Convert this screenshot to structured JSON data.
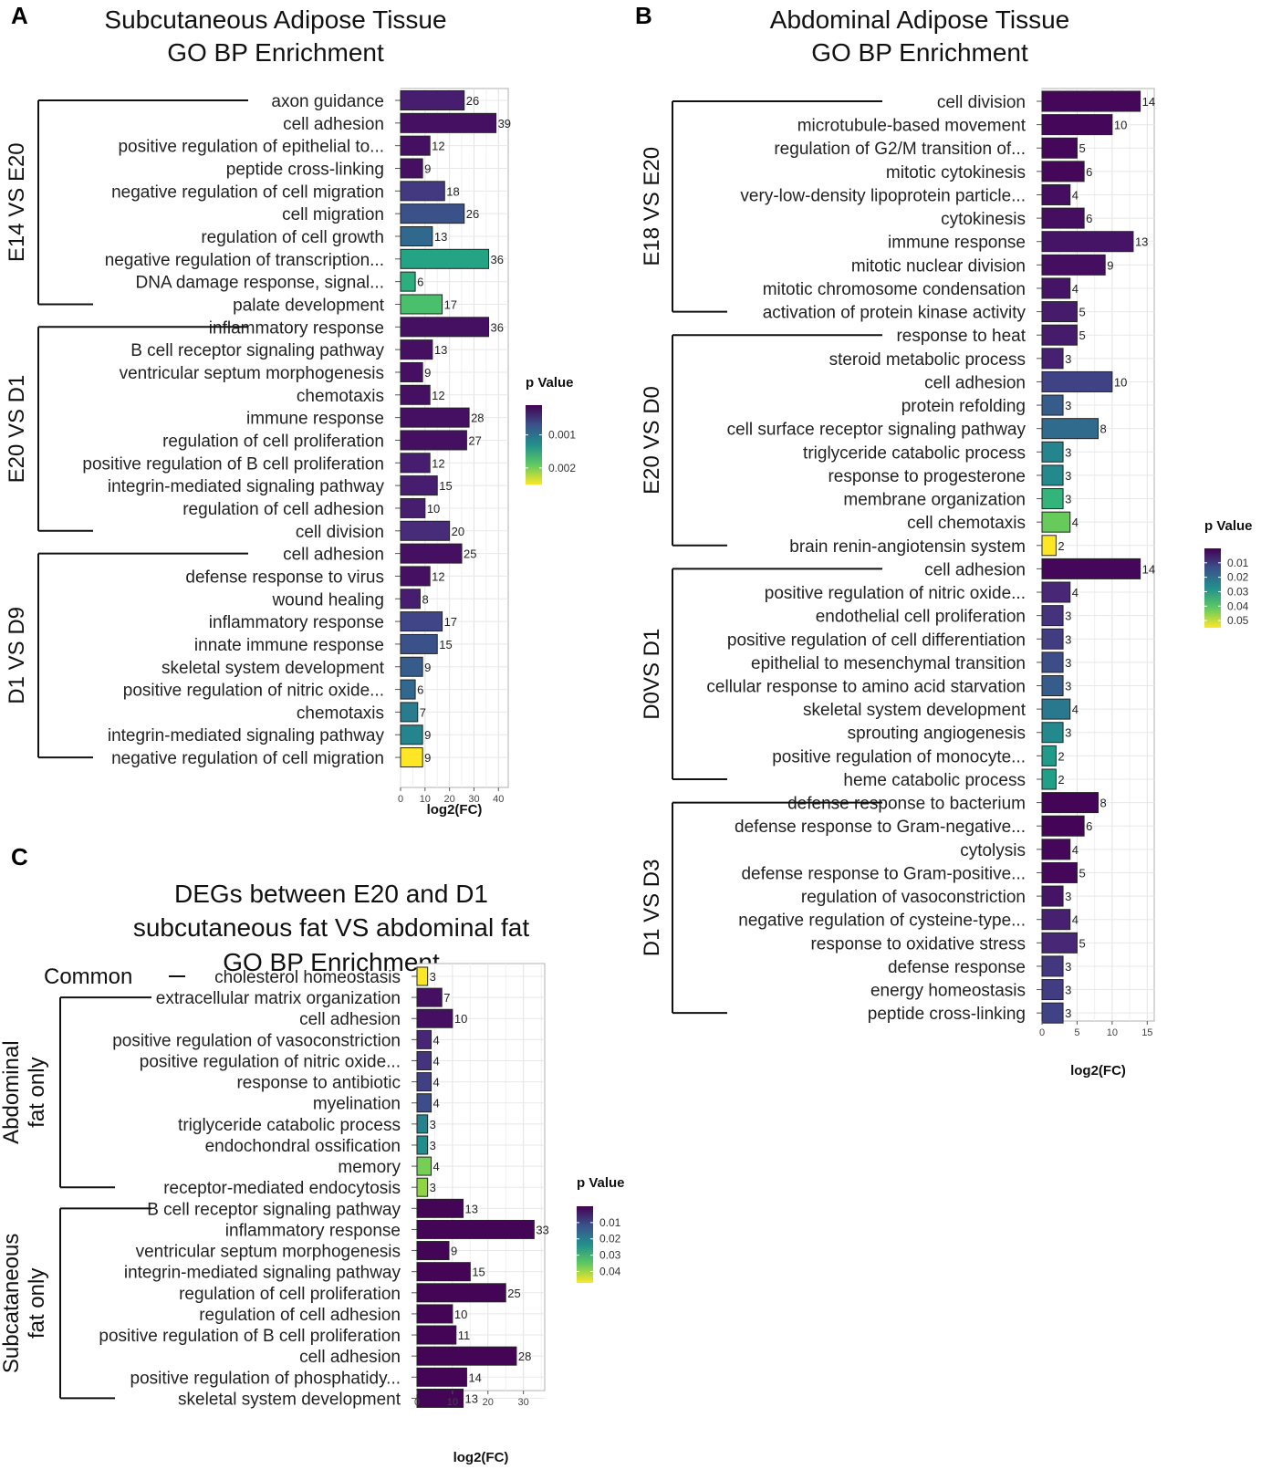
{
  "figure": {
    "panels": [
      {
        "letter": "A",
        "title": [
          "Subcutaneous Adipose Tissue",
          "GO BP Enrichment"
        ],
        "xlabel": "log2(FC)",
        "legend_title": "p Value"
      },
      {
        "letter": "B",
        "title": [
          "Abdominal Adipose Tissue",
          "GO BP Enrichment"
        ],
        "xlabel": "log2(FC)",
        "legend_title": "p Value"
      },
      {
        "letter": "C",
        "title": [
          "DEGs between E20 and D1",
          "subcutaneous fat VS abdominal fat",
          "GO BP Enrichment"
        ],
        "xlabel": "log2(FC)",
        "legend_title": "p Value"
      }
    ]
  },
  "chart_data": [
    {
      "type": "bar",
      "orientation": "horizontal",
      "panel": "A",
      "title": "Subcutaneous Adipose Tissue GO BP Enrichment",
      "xlabel": "log2(FC)",
      "xlim": [
        0,
        44
      ],
      "xticks": [
        0,
        10,
        20,
        30,
        40
      ],
      "legend": {
        "title": "p Value",
        "ticks": [
          0.001,
          0.002
        ],
        "range": [
          0.0001,
          0.0025
        ],
        "position": "right"
      },
      "groups": [
        {
          "name": "E14 VS E20",
          "terms": [
            {
              "label": "axon guidance",
              "value": 26,
              "p": 0.0003
            },
            {
              "label": "cell adhesion",
              "value": 39,
              "p": 0.0002
            },
            {
              "label": "positive regulation of epithelial to...",
              "value": 12,
              "p": 0.0002
            },
            {
              "label": "peptide cross-linking",
              "value": 9,
              "p": 0.0002
            },
            {
              "label": "negative regulation of cell migration",
              "value": 18,
              "p": 0.0005
            },
            {
              "label": "cell migration",
              "value": 26,
              "p": 0.0007
            },
            {
              "label": "regulation of cell growth",
              "value": 13,
              "p": 0.0009
            },
            {
              "label": "negative regulation of transcription...",
              "value": 36,
              "p": 0.0015
            },
            {
              "label": "DNA damage response, signal...",
              "value": 6,
              "p": 0.0016
            },
            {
              "label": "palate development",
              "value": 17,
              "p": 0.0018
            }
          ]
        },
        {
          "name": "E20 VS D1",
          "terms": [
            {
              "label": "inflammatory response",
              "value": 36,
              "p": 0.0002
            },
            {
              "label": "B cell receptor signaling pathway",
              "value": 13,
              "p": 0.0002
            },
            {
              "label": "ventricular septum morphogenesis",
              "value": 9,
              "p": 0.0002
            },
            {
              "label": "chemotaxis",
              "value": 12,
              "p": 0.0002
            },
            {
              "label": "immune response",
              "value": 28,
              "p": 0.0002
            },
            {
              "label": "regulation of cell proliferation",
              "value": 27,
              "p": 0.0002
            },
            {
              "label": "positive regulation of B cell proliferation",
              "value": 12,
              "p": 0.0003
            },
            {
              "label": "integrin-mediated signaling pathway",
              "value": 15,
              "p": 0.0003
            },
            {
              "label": "regulation of cell adhesion",
              "value": 10,
              "p": 0.0003
            },
            {
              "label": "cell division",
              "value": 20,
              "p": 0.0004
            }
          ]
        },
        {
          "name": "D1 VS D9",
          "terms": [
            {
              "label": "cell adhesion",
              "value": 25,
              "p": 0.0002
            },
            {
              "label": "defense response to virus",
              "value": 12,
              "p": 0.0002
            },
            {
              "label": "wound healing",
              "value": 8,
              "p": 0.0003
            },
            {
              "label": "inflammatory response",
              "value": 17,
              "p": 0.0006
            },
            {
              "label": "innate immune response",
              "value": 15,
              "p": 0.0007
            },
            {
              "label": "skeletal system development",
              "value": 9,
              "p": 0.0008
            },
            {
              "label": "positive regulation of nitric oxide...",
              "value": 6,
              "p": 0.0009
            },
            {
              "label": "chemotaxis",
              "value": 7,
              "p": 0.0011
            },
            {
              "label": "integrin-mediated signaling pathway",
              "value": 9,
              "p": 0.0012
            },
            {
              "label": "negative regulation of cell migration",
              "value": 9,
              "p": 0.0025
            }
          ]
        }
      ]
    },
    {
      "type": "bar",
      "orientation": "horizontal",
      "panel": "B",
      "title": "Abdominal Adipose Tissue GO BP Enrichment",
      "xlabel": "log2(FC)",
      "xlim": [
        0,
        16
      ],
      "xticks": [
        0,
        5,
        10,
        15
      ],
      "legend": {
        "title": "p Value",
        "ticks": [
          0.01,
          0.02,
          0.03,
          0.04,
          0.05
        ],
        "range": [
          0.0,
          0.055
        ],
        "position": "right"
      },
      "groups": [
        {
          "name": "E18 VS E20",
          "terms": [
            {
              "label": "cell division",
              "value": 14,
              "p": 0.001
            },
            {
              "label": "microtubule-based movement",
              "value": 10,
              "p": 0.001
            },
            {
              "label": "regulation of G2/M transition of...",
              "value": 5,
              "p": 0.001
            },
            {
              "label": "mitotic cytokinesis",
              "value": 6,
              "p": 0.001
            },
            {
              "label": "very-low-density lipoprotein particle...",
              "value": 4,
              "p": 0.002
            },
            {
              "label": "cytokinesis",
              "value": 6,
              "p": 0.002
            },
            {
              "label": "immune response",
              "value": 13,
              "p": 0.003
            },
            {
              "label": "mitotic nuclear division",
              "value": 9,
              "p": 0.002
            },
            {
              "label": "mitotic chromosome condensation",
              "value": 4,
              "p": 0.003
            },
            {
              "label": "activation of protein kinase activity",
              "value": 5,
              "p": 0.004
            }
          ]
        },
        {
          "name": "E20 VS D0",
          "terms": [
            {
              "label": "response to heat",
              "value": 5,
              "p": 0.004
            },
            {
              "label": "steroid metabolic process",
              "value": 3,
              "p": 0.005
            },
            {
              "label": "cell adhesion",
              "value": 10,
              "p": 0.011
            },
            {
              "label": "protein refolding",
              "value": 3,
              "p": 0.016
            },
            {
              "label": "cell surface receptor signaling pathway",
              "value": 8,
              "p": 0.019
            },
            {
              "label": "triglyceride catabolic process",
              "value": 3,
              "p": 0.025
            },
            {
              "label": "response to progesterone",
              "value": 3,
              "p": 0.026
            },
            {
              "label": "membrane organization",
              "value": 3,
              "p": 0.036
            },
            {
              "label": "cell chemotaxis",
              "value": 4,
              "p": 0.042
            },
            {
              "label": "brain renin-angiotensin system",
              "value": 2,
              "p": 0.055
            }
          ]
        },
        {
          "name": "D0VS D1",
          "terms": [
            {
              "label": "cell adhesion",
              "value": 14,
              "p": 0.001
            },
            {
              "label": "positive regulation of nitric oxide...",
              "value": 4,
              "p": 0.006
            },
            {
              "label": "endothelial cell proliferation",
              "value": 3,
              "p": 0.008
            },
            {
              "label": "positive regulation of cell differentiation",
              "value": 3,
              "p": 0.01
            },
            {
              "label": "epithelial to mesenchymal transition",
              "value": 3,
              "p": 0.013
            },
            {
              "label": "cellular response to amino acid starvation",
              "value": 3,
              "p": 0.016
            },
            {
              "label": "skeletal system development",
              "value": 4,
              "p": 0.022
            },
            {
              "label": "sprouting angiogenesis",
              "value": 3,
              "p": 0.026
            },
            {
              "label": "positive regulation of monocyte...",
              "value": 2,
              "p": 0.03
            },
            {
              "label": "heme catabolic process",
              "value": 2,
              "p": 0.031
            }
          ]
        },
        {
          "name": "D1 VS D3",
          "terms": [
            {
              "label": "defense response to bacterium",
              "value": 8,
              "p": 0.0005
            },
            {
              "label": "defense response to Gram-negative...",
              "value": 6,
              "p": 0.0005
            },
            {
              "label": "cytolysis",
              "value": 4,
              "p": 0.001
            },
            {
              "label": "defense response to Gram-positive...",
              "value": 5,
              "p": 0.001
            },
            {
              "label": "regulation of vasoconstriction",
              "value": 3,
              "p": 0.003
            },
            {
              "label": "negative regulation of cysteine-type...",
              "value": 4,
              "p": 0.005
            },
            {
              "label": "response to oxidative stress",
              "value": 5,
              "p": 0.006
            },
            {
              "label": "defense response",
              "value": 3,
              "p": 0.009
            },
            {
              "label": "energy homeostasis",
              "value": 3,
              "p": 0.01
            },
            {
              "label": "peptide cross-linking",
              "value": 3,
              "p": 0.011
            }
          ]
        }
      ]
    },
    {
      "type": "bar",
      "orientation": "horizontal",
      "panel": "C",
      "title": "DEGs between E20 and D1 subcutaneous fat VS abdominal fat GO BP Enrichment",
      "xlabel": "log2(FC)",
      "xlim": [
        0,
        36
      ],
      "xticks": [
        0,
        10,
        20,
        30
      ],
      "legend": {
        "title": "p Value",
        "ticks": [
          0.01,
          0.02,
          0.03,
          0.04
        ],
        "range": [
          0.0,
          0.047
        ],
        "position": "right"
      },
      "groups": [
        {
          "name": "Common",
          "terms": [
            {
              "label": "cholesterol homeostasis",
              "value": 3,
              "p": 0.047
            }
          ]
        },
        {
          "name": "Abdominal fat only",
          "terms": [
            {
              "label": "extracellular matrix organization",
              "value": 7,
              "p": 0.002
            },
            {
              "label": "cell adhesion",
              "value": 10,
              "p": 0.002
            },
            {
              "label": "positive regulation of vasoconstriction",
              "value": 4,
              "p": 0.005
            },
            {
              "label": "positive regulation of nitric oxide...",
              "value": 4,
              "p": 0.007
            },
            {
              "label": "response to antibiotic",
              "value": 4,
              "p": 0.009
            },
            {
              "label": "myelination",
              "value": 4,
              "p": 0.011
            },
            {
              "label": "triglyceride catabolic process",
              "value": 3,
              "p": 0.021
            },
            {
              "label": "endochondral ossification",
              "value": 3,
              "p": 0.023
            },
            {
              "label": "memory",
              "value": 4,
              "p": 0.037
            },
            {
              "label": "receptor-mediated endocytosis",
              "value": 3,
              "p": 0.039
            }
          ]
        },
        {
          "name": "Subcataneous fat only",
          "terms": [
            {
              "label": "B cell receptor signaling pathway",
              "value": 13,
              "p": 0.0005
            },
            {
              "label": "inflammatory response",
              "value": 33,
              "p": 0.0005
            },
            {
              "label": "ventricular septum morphogenesis",
              "value": 9,
              "p": 0.0005
            },
            {
              "label": "integrin-mediated signaling pathway",
              "value": 15,
              "p": 0.0005
            },
            {
              "label": "regulation of cell proliferation",
              "value": 25,
              "p": 0.0005
            },
            {
              "label": "regulation of cell adhesion",
              "value": 10,
              "p": 0.0005
            },
            {
              "label": "positive regulation of B cell proliferation",
              "value": 11,
              "p": 0.0005
            },
            {
              "label": "cell adhesion",
              "value": 28,
              "p": 0.0005
            },
            {
              "label": "positive regulation of phosphatidy...",
              "value": 14,
              "p": 0.0005
            },
            {
              "label": "skeletal system development",
              "value": 13,
              "p": 0.0005
            }
          ]
        }
      ]
    }
  ]
}
